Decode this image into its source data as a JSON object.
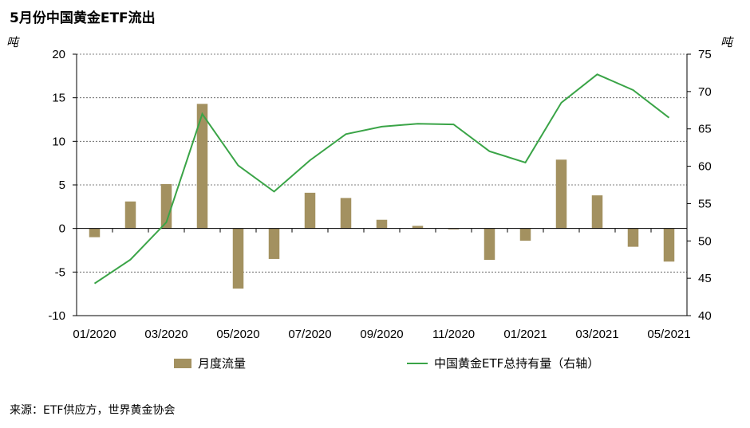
{
  "title": "5月份中国黄金ETF流出",
  "left_unit": "吨",
  "right_unit": "吨",
  "source": "来源：ETF供应方，世界黄金协会",
  "colors": {
    "bar": "#a39160",
    "line": "#3aa447",
    "grid": "#555555"
  },
  "chart_data": {
    "type": "bar+line",
    "categories": [
      "01/2020",
      "02/2020",
      "03/2020",
      "04/2020",
      "05/2020",
      "06/2020",
      "07/2020",
      "08/2020",
      "09/2020",
      "10/2020",
      "11/2020",
      "12/2020",
      "01/2021",
      "02/2021",
      "03/2021",
      "04/2021",
      "05/2021"
    ],
    "x_tick_labels": [
      "01/2020",
      "03/2020",
      "05/2020",
      "07/2020",
      "09/2020",
      "11/2020",
      "01/2021",
      "03/2021",
      "05/2021"
    ],
    "series": [
      {
        "name": "月度流量",
        "type": "bar",
        "axis": "left",
        "values": [
          -1.0,
          3.1,
          5.1,
          14.3,
          -6.9,
          -3.5,
          4.1,
          3.5,
          1.0,
          0.3,
          -0.1,
          -3.6,
          -1.4,
          7.9,
          3.8,
          -2.1,
          -3.8
        ]
      },
      {
        "name": "中国黄金ETF总持有量（右轴）",
        "type": "line",
        "axis": "right",
        "values": [
          44.3,
          47.5,
          52.5,
          67.0,
          60.1,
          56.6,
          60.8,
          64.3,
          65.3,
          65.7,
          65.6,
          62.0,
          60.5,
          68.5,
          72.3,
          70.2,
          66.5
        ]
      }
    ],
    "y_left": {
      "ylim": [
        -10,
        20
      ],
      "ticks": [
        20,
        15,
        10,
        5,
        0,
        -5,
        -10
      ]
    },
    "y_right": {
      "ylim": [
        40,
        75
      ],
      "ticks": [
        75,
        70,
        65,
        60,
        55,
        50,
        45,
        40
      ]
    },
    "grid": "dashed horizontal",
    "legend": "bottom"
  }
}
